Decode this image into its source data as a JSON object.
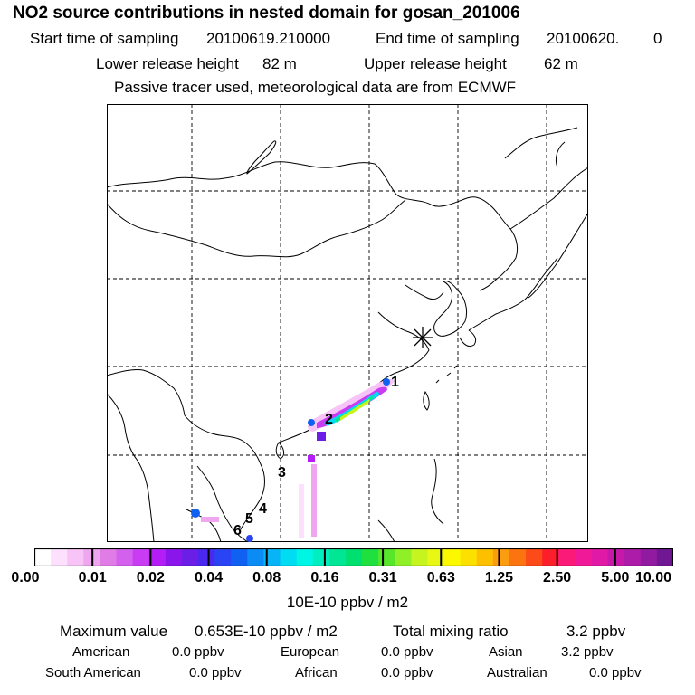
{
  "title": "NO2 source contributions in nested domain for gosan_201006",
  "header": {
    "start_label": "Start time of sampling",
    "start_value": "20100619.210000",
    "end_label": "End time of sampling",
    "end_value": "20100620.",
    "end_suffix": "0",
    "lower_label": "Lower release height",
    "lower_value": "82 m",
    "upper_label": "Upper release height",
    "upper_value": "62 m",
    "note": "Passive tracer used, meteorological data are from ECMWF"
  },
  "map": {
    "receptor_marker": "asterisk-icon",
    "source_labels": [
      "1",
      "2",
      "3",
      "4",
      "5",
      "6"
    ]
  },
  "colorbar": {
    "ticks": [
      "0.00",
      "0.01",
      "0.02",
      "0.04",
      "0.08",
      "0.16",
      "0.31",
      "0.63",
      "1.25",
      "2.50",
      "5.00",
      "10.00"
    ],
    "colors": [
      "#ffffff",
      "#fde0fd",
      "#f8c4f8",
      "#eea6ee",
      "#e07ce6",
      "#d460ee",
      "#c83cf4",
      "#b41ef6",
      "#8a16ec",
      "#6a1ee6",
      "#4a28f0",
      "#2a44f4",
      "#1060f2",
      "#0a8cf4",
      "#08b4f6",
      "#00dcf2",
      "#00f6e4",
      "#00eec0",
      "#00e694",
      "#00e070",
      "#20e040",
      "#58e62a",
      "#90f028",
      "#c6f41e",
      "#e8f814",
      "#fcf800",
      "#fce000",
      "#fcc000",
      "#fc9c10",
      "#fc7410",
      "#fc4a18",
      "#fc1e2a",
      "#fc1a78",
      "#f01a98",
      "#e01aa6",
      "#c818aa",
      "#ac1ca8",
      "#901aa0",
      "#701894"
    ],
    "units": "10E-10 ppbv / m2"
  },
  "stats": {
    "max_label": "Maximum value",
    "max_value": "0.653E-10 ppbv / m2",
    "total_label": "Total mixing ratio",
    "total_value": "3.2 ppbv",
    "regions": [
      {
        "name": "American",
        "value": "0.0 ppbv"
      },
      {
        "name": "European",
        "value": "0.0 ppbv"
      },
      {
        "name": "Asian",
        "value": "3.2 ppbv"
      },
      {
        "name": "South American",
        "value": "0.0 ppbv"
      },
      {
        "name": "African",
        "value": "0.0 ppbv"
      },
      {
        "name": "Australian",
        "value": "0.0 ppbv"
      }
    ]
  }
}
